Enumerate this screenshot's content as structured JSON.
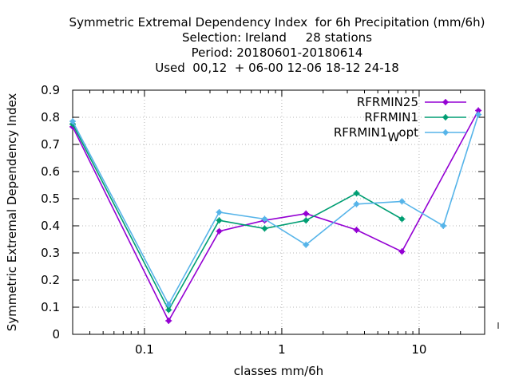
{
  "chart_data": {
    "type": "line",
    "title_lines": [
      "Symmetric Extremal Dependency Index  for 6h Precipitation (mm/6h)",
      "Selection: Ireland     28 stations",
      "Period: 20180601-20180614",
      "Used  00,12  + 06-00 12-06 18-12 24-18"
    ],
    "xlabel": "classes mm/6h",
    "ylabel": "Symmetric Extremal Dependency Index",
    "x_scale": "log",
    "xlim": [
      0.03,
      30
    ],
    "ylim": [
      0,
      0.9
    ],
    "x_ticks": [
      {
        "value": 0.1,
        "label": "0.1"
      },
      {
        "value": 1,
        "label": "1"
      },
      {
        "value": 10,
        "label": "10"
      }
    ],
    "y_ticks": [
      {
        "value": 0,
        "label": "0"
      },
      {
        "value": 0.1,
        "label": "0.1"
      },
      {
        "value": 0.2,
        "label": "0.2"
      },
      {
        "value": 0.3,
        "label": "0.3"
      },
      {
        "value": 0.4,
        "label": "0.4"
      },
      {
        "value": 0.5,
        "label": "0.5"
      },
      {
        "value": 0.6,
        "label": "0.6"
      },
      {
        "value": 0.7,
        "label": "0.7"
      },
      {
        "value": 0.8,
        "label": "0.8"
      },
      {
        "value": 0.9,
        "label": "0.9"
      }
    ],
    "grid": true,
    "legend_position": "top-right",
    "series": [
      {
        "name": "RFRMIN25",
        "legend_main": "RFRMIN25",
        "legend_sub": "",
        "legend_tail": "",
        "color": "#9400d3",
        "points": [
          [
            0.03,
            0.765
          ],
          [
            0.15,
            0.05
          ],
          [
            0.35,
            0.38
          ],
          [
            0.75,
            0.42
          ],
          [
            1.5,
            0.445
          ],
          [
            3.5,
            0.385
          ],
          [
            7.5,
            0.305
          ],
          [
            27,
            0.825
          ]
        ]
      },
      {
        "name": "RFRMIN1",
        "legend_main": "RFRMIN1",
        "legend_sub": "",
        "legend_tail": "",
        "color": "#009e73",
        "points": [
          [
            0.03,
            0.775
          ],
          [
            0.15,
            0.09
          ],
          [
            0.35,
            0.42
          ],
          [
            0.75,
            0.39
          ],
          [
            1.5,
            0.42
          ],
          [
            3.5,
            0.52
          ],
          [
            7.5,
            0.425
          ]
        ]
      },
      {
        "name": "RFRMIN1Wopt",
        "legend_main": "RFRMIN1",
        "legend_sub": "W",
        "legend_tail": "opt",
        "color": "#56b4e9",
        "points": [
          [
            0.03,
            0.785
          ],
          [
            0.15,
            0.11
          ],
          [
            0.35,
            0.45
          ],
          [
            0.75,
            0.425
          ],
          [
            1.5,
            0.33
          ],
          [
            3.5,
            0.48
          ],
          [
            7.5,
            0.49
          ],
          [
            15,
            0.4
          ],
          [
            27,
            0.81
          ]
        ]
      }
    ]
  }
}
